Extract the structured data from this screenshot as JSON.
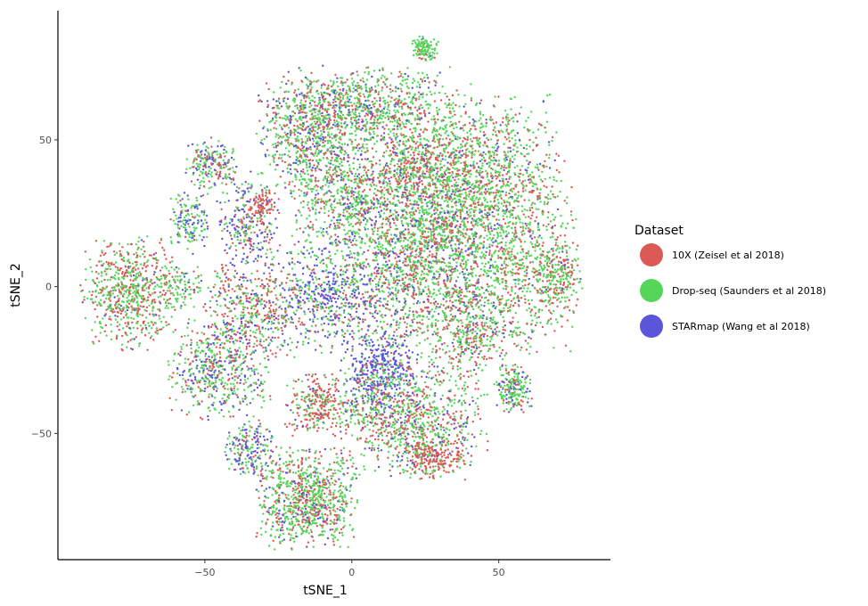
{
  "chart_data": {
    "type": "scatter",
    "title": "",
    "xlabel": "tSNE_1",
    "ylabel": "tSNE_2",
    "xlim": [
      -100,
      88
    ],
    "ylim": [
      -93,
      94
    ],
    "xticks": [
      -50,
      0,
      50
    ],
    "yticks": [
      -50,
      0,
      50
    ],
    "grid": false,
    "legend": {
      "title": "Dataset",
      "placement": "right"
    },
    "series": [
      {
        "name": "10X (Zeisel et al 2018)",
        "color": "#dc5a55"
      },
      {
        "name": "Drop-seq (Saunders et al 2018)",
        "color": "#55d65b"
      },
      {
        "name": "STARmap (Wang et al 2018)",
        "color": "#5b55d9"
      }
    ],
    "clusters": [
      {
        "x": 25,
        "y": 81,
        "sx": 2,
        "sy": 2,
        "n": 120,
        "weights": [
          0.1,
          0.85,
          0.05
        ]
      },
      {
        "x": 5,
        "y": 60,
        "sx": 14,
        "sy": 7,
        "n": 900,
        "weights": [
          0.3,
          0.55,
          0.15
        ]
      },
      {
        "x": -15,
        "y": 50,
        "sx": 8,
        "sy": 10,
        "n": 600,
        "weights": [
          0.3,
          0.5,
          0.2
        ]
      },
      {
        "x": 40,
        "y": 40,
        "sx": 14,
        "sy": 12,
        "n": 1300,
        "weights": [
          0.3,
          0.6,
          0.1
        ]
      },
      {
        "x": 55,
        "y": 10,
        "sx": 10,
        "sy": 15,
        "n": 900,
        "weights": [
          0.35,
          0.6,
          0.05
        ]
      },
      {
        "x": 70,
        "y": 3,
        "sx": 4,
        "sy": 6,
        "n": 220,
        "weights": [
          0.4,
          0.55,
          0.05
        ]
      },
      {
        "x": 20,
        "y": 40,
        "sx": 6,
        "sy": 5,
        "n": 250,
        "weights": [
          0.55,
          0.35,
          0.1
        ]
      },
      {
        "x": 0,
        "y": 30,
        "sx": 10,
        "sy": 10,
        "n": 700,
        "weights": [
          0.25,
          0.55,
          0.2
        ]
      },
      {
        "x": 20,
        "y": 5,
        "sx": 12,
        "sy": 14,
        "n": 1100,
        "weights": [
          0.3,
          0.5,
          0.2
        ]
      },
      {
        "x": -8,
        "y": -3,
        "sx": 10,
        "sy": 9,
        "n": 600,
        "weights": [
          0.15,
          0.35,
          0.5
        ]
      },
      {
        "x": 40,
        "y": -15,
        "sx": 8,
        "sy": 8,
        "n": 400,
        "weights": [
          0.4,
          0.5,
          0.1
        ]
      },
      {
        "x": -75,
        "y": -2,
        "sx": 8,
        "sy": 9,
        "n": 700,
        "weights": [
          0.45,
          0.5,
          0.05
        ]
      },
      {
        "x": -58,
        "y": 0,
        "sx": 4,
        "sy": 4,
        "n": 90,
        "weights": [
          0.2,
          0.7,
          0.1
        ]
      },
      {
        "x": -48,
        "y": 42,
        "sx": 4,
        "sy": 4,
        "n": 200,
        "weights": [
          0.25,
          0.5,
          0.25
        ]
      },
      {
        "x": -55,
        "y": 22,
        "sx": 3,
        "sy": 5,
        "n": 150,
        "weights": [
          0.1,
          0.6,
          0.3
        ]
      },
      {
        "x": -35,
        "y": 22,
        "sx": 5,
        "sy": 8,
        "n": 300,
        "weights": [
          0.3,
          0.3,
          0.4
        ]
      },
      {
        "x": -33,
        "y": -8,
        "sx": 8,
        "sy": 8,
        "n": 450,
        "weights": [
          0.45,
          0.35,
          0.2
        ]
      },
      {
        "x": -45,
        "y": -28,
        "sx": 8,
        "sy": 8,
        "n": 550,
        "weights": [
          0.25,
          0.45,
          0.3
        ]
      },
      {
        "x": -12,
        "y": -40,
        "sx": 5,
        "sy": 5,
        "n": 280,
        "weights": [
          0.6,
          0.3,
          0.1
        ]
      },
      {
        "x": 10,
        "y": -30,
        "sx": 6,
        "sy": 7,
        "n": 450,
        "weights": [
          0.1,
          0.2,
          0.7
        ]
      },
      {
        "x": 20,
        "y": -45,
        "sx": 12,
        "sy": 9,
        "n": 900,
        "weights": [
          0.35,
          0.5,
          0.15
        ]
      },
      {
        "x": 28,
        "y": -58,
        "sx": 5,
        "sy": 4,
        "n": 220,
        "weights": [
          0.7,
          0.25,
          0.05
        ]
      },
      {
        "x": 55,
        "y": -35,
        "sx": 3,
        "sy": 4,
        "n": 200,
        "weights": [
          0.15,
          0.6,
          0.25
        ]
      },
      {
        "x": -15,
        "y": -72,
        "sx": 8,
        "sy": 8,
        "n": 900,
        "weights": [
          0.35,
          0.55,
          0.1
        ]
      },
      {
        "x": -35,
        "y": -55,
        "sx": 4,
        "sy": 5,
        "n": 200,
        "weights": [
          0.15,
          0.45,
          0.4
        ]
      },
      {
        "x": -30,
        "y": 28,
        "sx": 2,
        "sy": 2,
        "n": 60,
        "weights": [
          0.9,
          0.05,
          0.05
        ]
      },
      {
        "x": 30,
        "y": 20,
        "sx": 10,
        "sy": 10,
        "n": 500,
        "weights": [
          0.3,
          0.55,
          0.15
        ]
      }
    ]
  }
}
